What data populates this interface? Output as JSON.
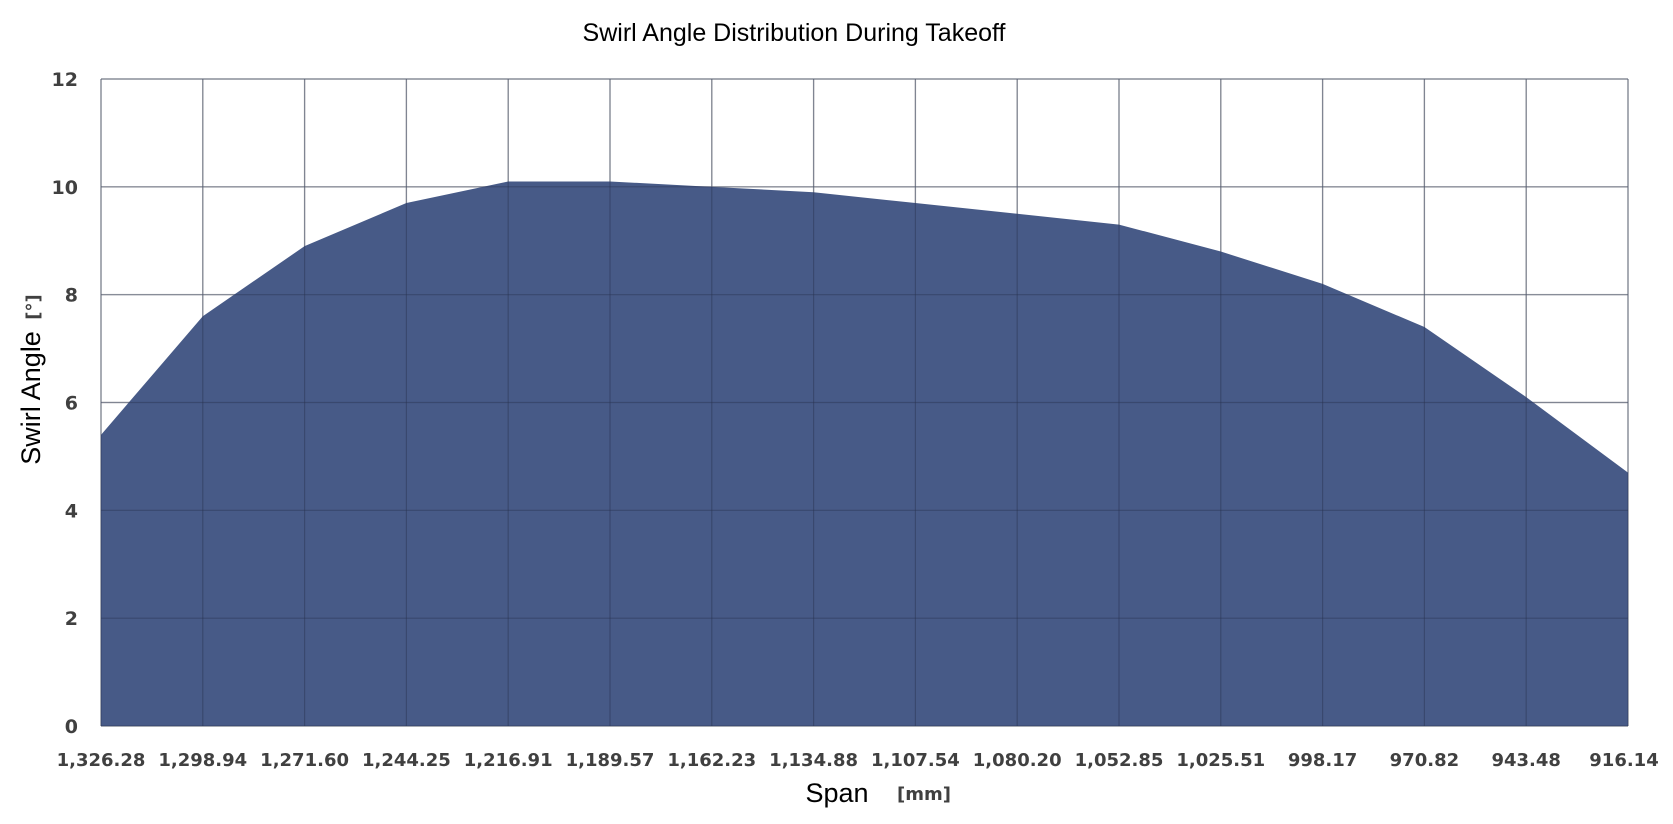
{
  "chart_data": {
    "type": "area",
    "title": "Swirl Angle Distribution During Takeoff",
    "xlabel": "Span",
    "xlabel_unit": "[mm]",
    "ylabel": "Swirl Angle",
    "ylabel_unit": "[°]",
    "categories": [
      "1,326.28",
      "1,298.94",
      "1,271.60",
      "1,244.25",
      "1,216.91",
      "1,189.57",
      "1,162.23",
      "1,134.88",
      "1,107.54",
      "1,080.20",
      "1,052.85",
      "1,025.51",
      "998.17",
      "970.82",
      "943.48",
      "916.14"
    ],
    "x": [
      1326.28,
      1298.94,
      1271.6,
      1244.25,
      1216.91,
      1189.57,
      1162.23,
      1134.88,
      1107.54,
      1080.2,
      1052.85,
      1025.51,
      998.17,
      970.82,
      943.48,
      916.14
    ],
    "values": [
      5.4,
      7.6,
      8.9,
      9.7,
      10.1,
      10.1,
      10.0,
      9.9,
      9.7,
      9.5,
      9.3,
      8.8,
      8.2,
      7.4,
      6.1,
      4.7
    ],
    "ylim": [
      0,
      12
    ],
    "yticks": [
      "0",
      "2",
      "4",
      "6",
      "8",
      "10",
      "12"
    ],
    "grid": true,
    "colors": {
      "fill": "#475a87",
      "grid": "#c8c8c8"
    }
  }
}
